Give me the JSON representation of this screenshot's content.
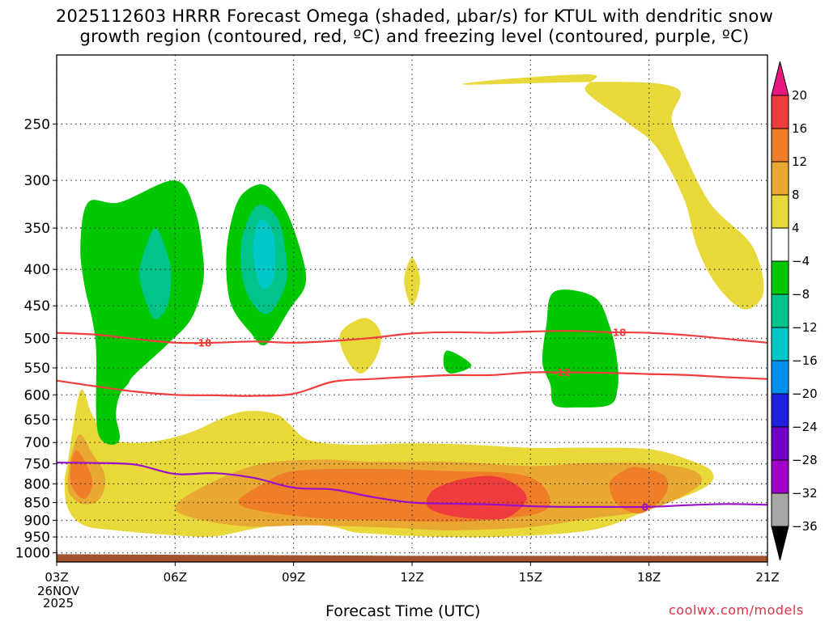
{
  "title": {
    "line1": "2025112603 HRRR Forecast Omega (shaded, μbar/s) for KTUL with dendritic snow",
    "line2": "growth region (contoured, red, ºC) and freezing level (contoured, purple, ºC)"
  },
  "chart_data": {
    "type": "time-height contour",
    "title": "2025112603 HRRR Forecast Omega (shaded, μbar/s) for KTUL with dendritic snow growth region (contoured, red, ºC) and freezing level (contoured, purple, ºC)",
    "xlabel": "Forecast Time (UTC)",
    "ylabel": "",
    "x_range_hours": [
      0,
      18
    ],
    "x_ticks": [
      {
        "label": "03Z",
        "hour": 0
      },
      {
        "label": "06Z",
        "hour": 3
      },
      {
        "label": "09Z",
        "hour": 6
      },
      {
        "label": "12Z",
        "hour": 9
      },
      {
        "label": "15Z",
        "hour": 12
      },
      {
        "label": "18Z",
        "hour": 15
      },
      {
        "label": "21Z",
        "hour": 18
      }
    ],
    "x_start_date": [
      "26NOV",
      "2025"
    ],
    "y_scale": "log pressure (hPa), inverted",
    "y_range": [
      1030,
      200
    ],
    "y_ticks": [
      250,
      300,
      350,
      400,
      450,
      500,
      550,
      600,
      650,
      700,
      750,
      800,
      850,
      900,
      950,
      1000
    ],
    "colorbar": {
      "labels": [
        "20",
        "16",
        "12",
        "8",
        "4",
        "−4",
        "−8",
        "−12",
        "−16",
        "−20",
        "−24",
        "−28",
        "−32",
        "−36"
      ],
      "colors": [
        "#e8187e",
        "#f03c3c",
        "#f07d28",
        "#e8a832",
        "#e8d83a",
        "#ffffff",
        "#00c800",
        "#00c48c",
        "#00c8c8",
        "#0090f0",
        "#2020e0",
        "#7000c8",
        "#a000c8",
        "#a8a8a8",
        "#000000"
      ]
    },
    "omega_regions": [
      {
        "level": 4,
        "color": "#e8d83a",
        "points": [
          [
            10.3,
            220
          ],
          [
            15.4,
            220
          ],
          [
            15.6,
            250
          ],
          [
            16.5,
            320
          ],
          [
            17.6,
            370
          ],
          [
            17.9,
            430
          ],
          [
            17.4,
            455
          ],
          [
            16.7,
            420
          ],
          [
            16.2,
            370
          ],
          [
            15.9,
            320
          ],
          [
            15.2,
            270
          ],
          [
            14.5,
            250
          ],
          [
            13.4,
            225
          ],
          [
            13.5,
            213
          ]
        ]
      },
      {
        "level": 4,
        "color": "#e8d83a",
        "points": [
          [
            0.6,
            592
          ],
          [
            0.9,
            640
          ],
          [
            1.3,
            690
          ],
          [
            2.2,
            700
          ],
          [
            3.3,
            680
          ],
          [
            4.4,
            640
          ],
          [
            5,
            632
          ],
          [
            5.6,
            640
          ],
          [
            5.9,
            660
          ],
          [
            6.4,
            695
          ],
          [
            7.5,
            705
          ],
          [
            9,
            702
          ],
          [
            10.5,
            705
          ],
          [
            12,
            712
          ],
          [
            13.5,
            712
          ],
          [
            15,
            715
          ],
          [
            16,
            740
          ],
          [
            16.6,
            770
          ],
          [
            16.4,
            810
          ],
          [
            15,
            870
          ],
          [
            13.5,
            930
          ],
          [
            11,
            950
          ],
          [
            9,
            947
          ],
          [
            8,
            940
          ],
          [
            7.5,
            935
          ],
          [
            7,
            920
          ],
          [
            6,
            910
          ],
          [
            5,
            925
          ],
          [
            4,
            948
          ],
          [
            3,
            945
          ],
          [
            1.5,
            930
          ],
          [
            0.7,
            915
          ],
          [
            0.3,
            870
          ],
          [
            0.2,
            800
          ],
          [
            0.3,
            735
          ]
        ]
      },
      {
        "level": 4,
        "color": "#e8d83a",
        "points": [
          [
            7.8,
            468
          ],
          [
            8.2,
            490
          ],
          [
            8.1,
            530
          ],
          [
            7.7,
            560
          ],
          [
            7.3,
            530
          ],
          [
            7.2,
            490
          ]
        ]
      },
      {
        "level": 4,
        "color": "#e8d83a",
        "points": [
          [
            9.0,
            385
          ],
          [
            9.2,
            415
          ],
          [
            9.0,
            450
          ],
          [
            8.8,
            415
          ]
        ]
      },
      {
        "level": 8,
        "color": "#e8a832",
        "points": [
          [
            0.6,
            682
          ],
          [
            0.9,
            725
          ],
          [
            1.2,
            770
          ],
          [
            1.2,
            815
          ],
          [
            1.0,
            848
          ],
          [
            0.6,
            852
          ],
          [
            0.3,
            820
          ],
          [
            0.3,
            770
          ],
          [
            0.4,
            720
          ]
        ]
      },
      {
        "level": 8,
        "color": "#e8a832",
        "points": [
          [
            3,
            862
          ],
          [
            4.8,
            760
          ],
          [
            6.5,
            740
          ],
          [
            8,
            745
          ],
          [
            10,
            745
          ],
          [
            12,
            755
          ],
          [
            13.5,
            748
          ],
          [
            15.2,
            750
          ],
          [
            16.2,
            770
          ],
          [
            16.2,
            810
          ],
          [
            15,
            870
          ],
          [
            13.5,
            895
          ],
          [
            12,
            920
          ],
          [
            10,
            930
          ],
          [
            8.5,
            922
          ],
          [
            6.5,
            915
          ],
          [
            4.5,
            915
          ]
        ]
      },
      {
        "level": 12,
        "color": "#f07d28",
        "points": [
          [
            0.5,
            718
          ],
          [
            0.8,
            760
          ],
          [
            0.9,
            805
          ],
          [
            0.7,
            840
          ],
          [
            0.4,
            810
          ],
          [
            0.35,
            760
          ]
        ]
      },
      {
        "level": 12,
        "color": "#f07d28",
        "points": [
          [
            4.6,
            845
          ],
          [
            5.2,
            802
          ],
          [
            6,
            768
          ],
          [
            8,
            762
          ],
          [
            10,
            768
          ],
          [
            11.5,
            773
          ],
          [
            12.2,
            795
          ],
          [
            12.5,
            845
          ],
          [
            12.2,
            880
          ],
          [
            11,
            898
          ],
          [
            10,
            905
          ],
          [
            8,
            900
          ],
          [
            6.5,
            893
          ],
          [
            5,
            870
          ]
        ]
      },
      {
        "level": 12,
        "color": "#f07d28",
        "points": [
          [
            14.7,
            758
          ],
          [
            15.4,
            780
          ],
          [
            15.4,
            830
          ],
          [
            14.8,
            880
          ],
          [
            14.2,
            855
          ],
          [
            14.0,
            800
          ],
          [
            14.3,
            770
          ]
        ]
      },
      {
        "level": 16,
        "color": "#f03c3c",
        "points": [
          [
            9.5,
            820
          ],
          [
            10.1,
            792
          ],
          [
            11,
            780
          ],
          [
            11.6,
            800
          ],
          [
            11.9,
            840
          ],
          [
            11.5,
            888
          ],
          [
            11,
            898
          ],
          [
            10,
            888
          ],
          [
            9.4,
            862
          ]
        ]
      },
      {
        "level": -4,
        "color": "#00c800",
        "points": [
          [
            0.8,
            322
          ],
          [
            1.6,
            322
          ],
          [
            3,
            300
          ],
          [
            3.5,
            330
          ],
          [
            3.7,
            380
          ],
          [
            3.7,
            420
          ],
          [
            3.4,
            470
          ],
          [
            2.8,
            510
          ],
          [
            2.0,
            560
          ],
          [
            1.8,
            580
          ],
          [
            1.6,
            600
          ],
          [
            1.5,
            640
          ],
          [
            1.6,
            690
          ],
          [
            1.4,
            705
          ],
          [
            1.1,
            690
          ],
          [
            1.0,
            640
          ],
          [
            1.0,
            520
          ],
          [
            0.9,
            470
          ],
          [
            0.7,
            420
          ],
          [
            0.6,
            370
          ]
        ]
      },
      {
        "level": -4,
        "color": "#00c800",
        "points": [
          [
            4.8,
            310
          ],
          [
            5.3,
            305
          ],
          [
            5.8,
            330
          ],
          [
            6.2,
            380
          ],
          [
            6.3,
            420
          ],
          [
            5.9,
            455
          ],
          [
            5.3,
            510
          ],
          [
            4.9,
            490
          ],
          [
            4.4,
            445
          ],
          [
            4.3,
            380
          ],
          [
            4.5,
            330
          ]
        ]
      },
      {
        "level": -4,
        "color": "#00c800",
        "points": [
          [
            12.6,
            430
          ],
          [
            13.6,
            437
          ],
          [
            14.0,
            480
          ],
          [
            14.2,
            540
          ],
          [
            14.2,
            590
          ],
          [
            14.0,
            620
          ],
          [
            13.2,
            625
          ],
          [
            12.6,
            620
          ],
          [
            12.5,
            580
          ],
          [
            12.3,
            540
          ],
          [
            12.4,
            480
          ]
        ]
      },
      {
        "level": -4,
        "color": "#00c800",
        "points": [
          [
            9.9,
            520
          ],
          [
            10.5,
            545
          ],
          [
            10.0,
            560
          ],
          [
            9.8,
            545
          ]
        ]
      },
      {
        "level": -8,
        "color": "#00c48c",
        "points": [
          [
            2.5,
            350
          ],
          [
            2.8,
            380
          ],
          [
            2.9,
            410
          ],
          [
            2.8,
            450
          ],
          [
            2.5,
            470
          ],
          [
            2.3,
            450
          ],
          [
            2.1,
            410
          ],
          [
            2.2,
            380
          ]
        ]
      },
      {
        "level": -8,
        "color": "#00c48c",
        "points": [
          [
            5.1,
            325
          ],
          [
            5.6,
            340
          ],
          [
            5.8,
            380
          ],
          [
            5.8,
            420
          ],
          [
            5.4,
            460
          ],
          [
            5.0,
            450
          ],
          [
            4.7,
            410
          ],
          [
            4.7,
            360
          ]
        ]
      },
      {
        "level": -12,
        "color": "#00c8c8",
        "points": [
          [
            5.2,
            340
          ],
          [
            5.5,
            360
          ],
          [
            5.5,
            410
          ],
          [
            5.2,
            425
          ],
          [
            5.0,
            390
          ],
          [
            5.0,
            360
          ]
        ]
      }
    ],
    "contours": [
      {
        "name": "dendritic growth upper (-18 ºC)",
        "label": "-18",
        "color": "#f03c3c",
        "points": [
          [
            0,
            491
          ],
          [
            1,
            494
          ],
          [
            2,
            501
          ],
          [
            3,
            507
          ],
          [
            4,
            507
          ],
          [
            5,
            505
          ],
          [
            6,
            507
          ],
          [
            7,
            504
          ],
          [
            8,
            499
          ],
          [
            9,
            492
          ],
          [
            10,
            490
          ],
          [
            11,
            491
          ],
          [
            12,
            489
          ],
          [
            13,
            488
          ],
          [
            14,
            490
          ],
          [
            15,
            491
          ],
          [
            16,
            495
          ],
          [
            17,
            501
          ],
          [
            18,
            507
          ]
        ],
        "label_hours": [
          3.7,
          14.2
        ]
      },
      {
        "name": "dendritic growth lower (-12 ºC)",
        "label": "-12",
        "color": "#f03c3c",
        "points": [
          [
            0,
            573
          ],
          [
            1,
            584
          ],
          [
            2,
            594
          ],
          [
            3,
            600
          ],
          [
            4,
            601
          ],
          [
            5,
            602
          ],
          [
            6,
            598
          ],
          [
            7,
            575
          ],
          [
            8,
            570
          ],
          [
            9,
            566
          ],
          [
            10,
            563
          ],
          [
            11,
            563
          ],
          [
            12,
            558
          ],
          [
            13,
            558
          ],
          [
            14,
            559
          ],
          [
            15,
            561
          ],
          [
            16,
            563
          ],
          [
            17,
            567
          ],
          [
            18,
            570
          ]
        ],
        "label_hours": [
          12.8
        ]
      },
      {
        "name": "freezing level (0 ºC)",
        "label": "0",
        "color": "#9a10c8",
        "points": [
          [
            0,
            747
          ],
          [
            1,
            748
          ],
          [
            2,
            752
          ],
          [
            3,
            775
          ],
          [
            4,
            773
          ],
          [
            5,
            785
          ],
          [
            6,
            810
          ],
          [
            7,
            815
          ],
          [
            8,
            835
          ],
          [
            9,
            850
          ],
          [
            10,
            853
          ],
          [
            11,
            855
          ],
          [
            12,
            860
          ],
          [
            13,
            862
          ],
          [
            14,
            862
          ],
          [
            15,
            862
          ],
          [
            16,
            857
          ],
          [
            17,
            854
          ],
          [
            18,
            856
          ]
        ],
        "label_hours": [
          14.9
        ]
      }
    ],
    "terrain": {
      "color": "#a0522d",
      "surface_hpa": 1007
    }
  },
  "footer": {
    "axis_title": "Forecast Time (UTC)",
    "site": "coolwx.com/models"
  }
}
